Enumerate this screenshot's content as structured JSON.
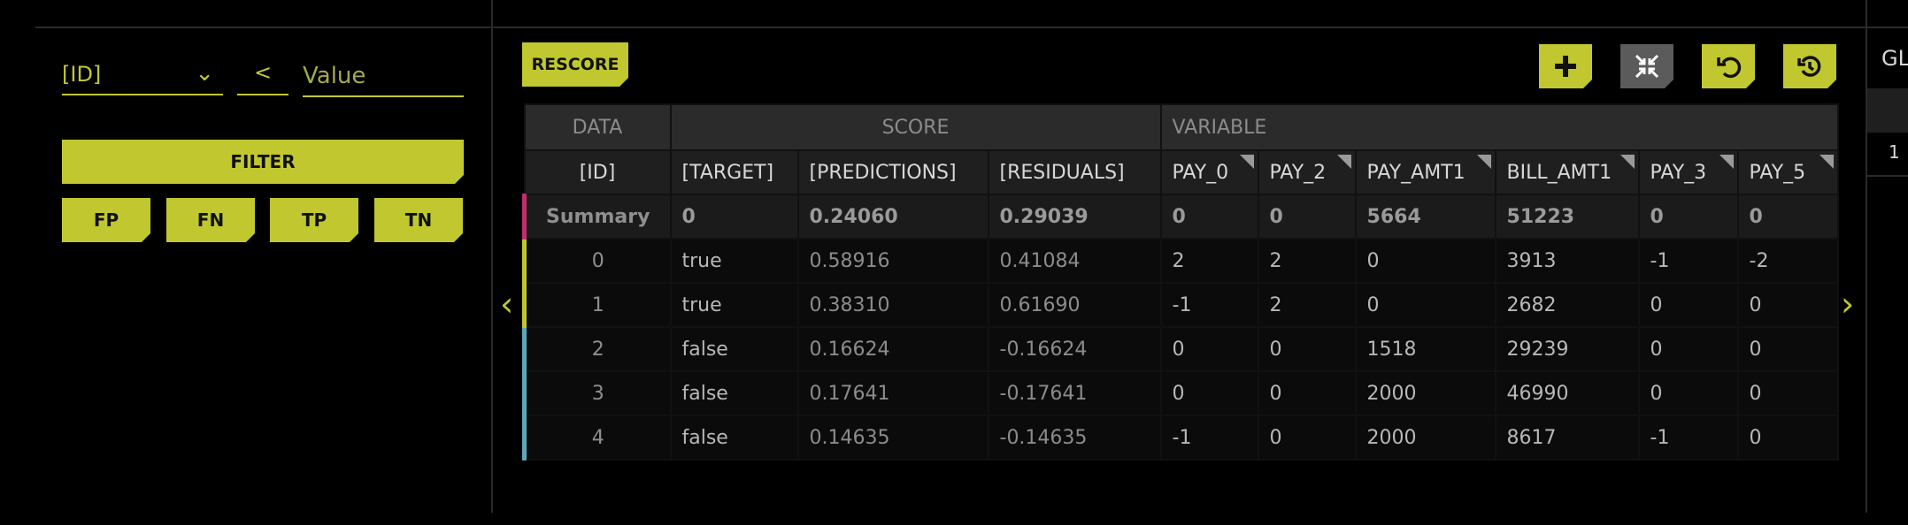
{
  "filter": {
    "column_select": "[ID]",
    "operator": "<",
    "value_placeholder": "Value",
    "filter_label": "FILTER",
    "chips": [
      "FP",
      "FN",
      "TP",
      "TN"
    ]
  },
  "toolbar": {
    "rescore_label": "RESCORE",
    "icons": [
      "plus-icon",
      "collapse-icon",
      "undo-icon",
      "history-icon"
    ]
  },
  "table": {
    "groups": [
      "DATA",
      "SCORE",
      "VARIABLE"
    ],
    "columns": [
      "[ID]",
      "[TARGET]",
      "[PREDICTIONS]",
      "[RESIDUALS]",
      "PAY_0",
      "PAY_2",
      "PAY_AMT1",
      "BILL_AMT1",
      "PAY_3",
      "PAY_5"
    ],
    "summary": [
      "Summary",
      "0",
      "0.24060",
      "0.29039",
      "0",
      "0",
      "5664",
      "51223",
      "0",
      "0"
    ],
    "rows": [
      {
        "color": "#c1c82f",
        "cells": [
          "0",
          "true",
          "0.58916",
          "0.41084",
          "2",
          "2",
          "0",
          "3913",
          "-1",
          "-2"
        ]
      },
      {
        "color": "#c1c82f",
        "cells": [
          "1",
          "true",
          "0.38310",
          "0.61690",
          "-1",
          "2",
          "0",
          "2682",
          "0",
          "0"
        ]
      },
      {
        "color": "#5fa8b8",
        "cells": [
          "2",
          "false",
          "0.16624",
          "-0.16624",
          "0",
          "0",
          "1518",
          "29239",
          "0",
          "0"
        ]
      },
      {
        "color": "#5fa8b8",
        "cells": [
          "3",
          "false",
          "0.17641",
          "-0.17641",
          "0",
          "0",
          "2000",
          "46990",
          "0",
          "0"
        ]
      },
      {
        "color": "#5fa8b8",
        "cells": [
          "4",
          "false",
          "0.14635",
          "-0.14635",
          "-1",
          "0",
          "2000",
          "8617",
          "-1",
          "0"
        ]
      }
    ],
    "summary_color": "#c0306f"
  },
  "nav": {
    "prev": "‹",
    "next": "›"
  },
  "right_panel": {
    "header_fragment": "GL",
    "row_value": "1"
  },
  "colors": {
    "accent": "#c1c82f",
    "gray_button": "#5b5b5b"
  }
}
